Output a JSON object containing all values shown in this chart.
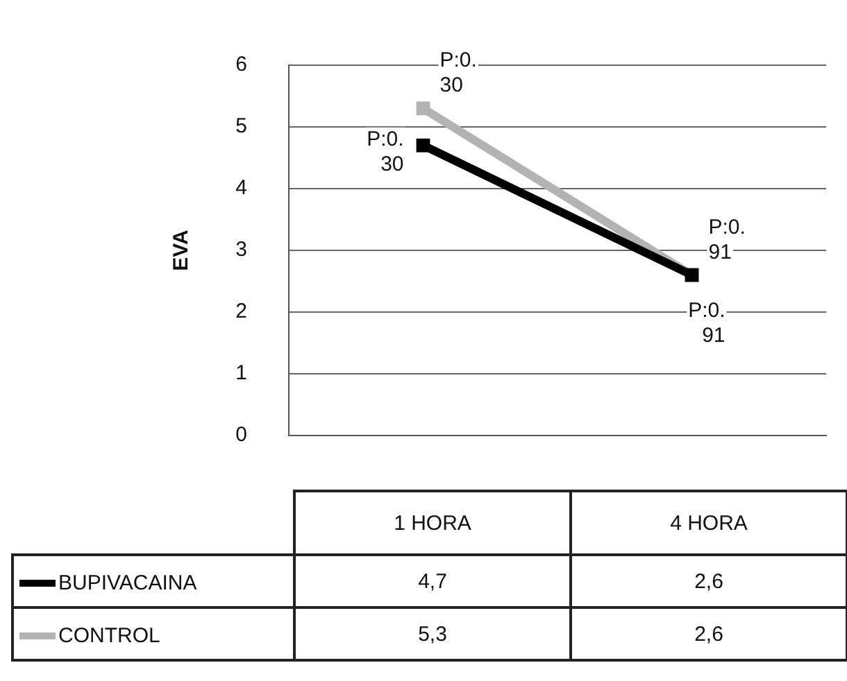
{
  "chart_data": {
    "type": "line",
    "ylabel": "EVA",
    "categories": [
      "1 HORA",
      "4 HORA"
    ],
    "series": [
      {
        "name": "BUPIVACAINA",
        "color": "#000000",
        "values": [
          4.7,
          2.6
        ],
        "value_labels": [
          "4,7",
          "2,6"
        ]
      },
      {
        "name": "CONTROL",
        "color": "#b3b3b3",
        "values": [
          5.3,
          2.6
        ],
        "value_labels": [
          "5,3",
          "2,6"
        ]
      }
    ],
    "ylim": [
      0,
      6
    ],
    "yticks": [
      0,
      1,
      2,
      3,
      4,
      5,
      6
    ],
    "grid": "y",
    "legend": "bottom",
    "marker": "square",
    "line_style": "solid",
    "annotations": [
      "P:0.30",
      "P:0.30",
      "P:0.91",
      "P:0.91"
    ]
  }
}
